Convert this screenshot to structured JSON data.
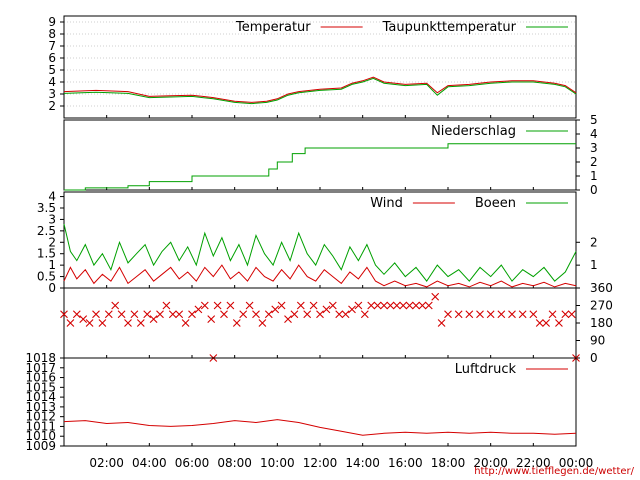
{
  "credit": "http://www.tiefflegen.de/wetter/",
  "x_ticks": [
    "02:00",
    "04:00",
    "06:00",
    "08:00",
    "10:00",
    "12:00",
    "14:00",
    "16:00",
    "18:00",
    "20:00",
    "22:00",
    "00:00"
  ],
  "colors": {
    "red": "#d40000",
    "green": "#00a000",
    "grid": "#a0a0a0",
    "frame": "#000000"
  },
  "chart_data": [
    {
      "type": "line",
      "x_unit": "hours",
      "xlim": [
        0,
        24
      ],
      "ylim": [
        1,
        9.5
      ],
      "y_ticks": [
        2,
        3,
        4,
        5,
        6,
        7,
        8,
        9
      ],
      "grid": true,
      "legend": "top-right",
      "series": [
        {
          "name": "Temperatur",
          "color": "#d40000",
          "x": [
            0,
            1.5,
            3,
            4,
            5,
            6,
            6.5,
            7,
            8,
            8.8,
            9.5,
            10,
            10.5,
            11,
            12,
            13,
            13.5,
            14,
            14.5,
            15,
            16,
            17,
            17.5,
            18,
            19,
            20,
            21,
            22,
            23,
            23.5,
            24
          ],
          "values": [
            3.2,
            3.3,
            3.2,
            2.8,
            2.85,
            2.9,
            2.8,
            2.7,
            2.4,
            2.3,
            2.4,
            2.6,
            3.0,
            3.2,
            3.4,
            3.5,
            3.9,
            4.1,
            4.4,
            4.0,
            3.8,
            3.9,
            3.1,
            3.7,
            3.8,
            4.0,
            4.1,
            4.1,
            3.9,
            3.7,
            3.1
          ]
        },
        {
          "name": "Taupunkttemperatur",
          "color": "#00a000",
          "x": [
            0,
            1.5,
            3,
            4,
            5,
            6,
            6.5,
            7,
            8,
            8.8,
            9.5,
            10,
            10.5,
            11,
            12,
            13,
            13.5,
            14,
            14.5,
            15,
            16,
            17,
            17.5,
            18,
            19,
            20,
            21,
            22,
            23,
            23.5,
            24
          ],
          "values": [
            3.05,
            3.15,
            3.05,
            2.7,
            2.75,
            2.8,
            2.7,
            2.6,
            2.3,
            2.2,
            2.3,
            2.5,
            2.9,
            3.1,
            3.3,
            3.4,
            3.8,
            4.0,
            4.3,
            3.9,
            3.7,
            3.8,
            2.9,
            3.6,
            3.7,
            3.9,
            4.0,
            4.0,
            3.8,
            3.6,
            3.0
          ]
        }
      ]
    },
    {
      "type": "line",
      "x_unit": "hours",
      "xlim": [
        0,
        24
      ],
      "ylim": [
        0,
        5
      ],
      "y_ticks": [
        0,
        1,
        2,
        3,
        4,
        5
      ],
      "y_axis": "right",
      "legend": "top-right",
      "series": [
        {
          "name": "Niederschlag",
          "color": "#00a000",
          "step": true,
          "x": [
            0,
            1,
            3,
            4,
            6,
            9.6,
            10,
            10.7,
            11.3,
            18,
            24
          ],
          "values": [
            0,
            0.15,
            0.3,
            0.6,
            1.0,
            1.5,
            2.0,
            2.6,
            3.0,
            3.3,
            3.3
          ]
        }
      ]
    },
    {
      "type": "line",
      "x_unit": "hours",
      "xlim": [
        0,
        24
      ],
      "ylim": [
        0,
        4.2
      ],
      "y_ticks": [
        0,
        0.5,
        1,
        1.5,
        2,
        2.5,
        3,
        3.5,
        4
      ],
      "right_ticks": [
        1,
        2
      ],
      "legend": "top-right",
      "series": [
        {
          "name": "Wind",
          "color": "#d40000",
          "x": [
            0,
            0.3,
            0.6,
            1,
            1.4,
            1.8,
            2.2,
            2.6,
            3,
            3.4,
            3.8,
            4.2,
            4.6,
            5,
            5.4,
            5.8,
            6.2,
            6.6,
            7,
            7.4,
            7.8,
            8.2,
            8.6,
            9,
            9.4,
            9.8,
            10.2,
            10.6,
            11,
            11.4,
            11.8,
            12.2,
            12.6,
            13,
            13.4,
            13.8,
            14.2,
            14.6,
            15,
            15.5,
            16,
            16.5,
            17,
            17.5,
            18,
            18.5,
            19,
            19.5,
            20,
            20.5,
            21,
            21.5,
            22,
            22.5,
            23,
            23.5,
            24
          ],
          "values": [
            0.3,
            0.9,
            0.4,
            0.8,
            0.2,
            0.6,
            0.3,
            0.9,
            0.2,
            0.5,
            0.8,
            0.3,
            0.6,
            0.9,
            0.4,
            0.7,
            0.3,
            0.9,
            0.5,
            1.0,
            0.4,
            0.7,
            0.3,
            0.9,
            0.5,
            0.3,
            0.8,
            0.4,
            1.0,
            0.5,
            0.3,
            0.8,
            0.5,
            0.2,
            0.7,
            0.4,
            0.9,
            0.3,
            0.1,
            0.3,
            0.1,
            0.2,
            0.05,
            0.3,
            0.1,
            0.2,
            0.05,
            0.25,
            0.1,
            0.3,
            0.05,
            0.2,
            0.1,
            0.25,
            0.05,
            0.2,
            0.1
          ]
        },
        {
          "name": "Boeen",
          "color": "#00a000",
          "x": [
            0,
            0.3,
            0.6,
            1,
            1.4,
            1.8,
            2.2,
            2.6,
            3,
            3.4,
            3.8,
            4.2,
            4.6,
            5,
            5.4,
            5.8,
            6.2,
            6.6,
            7,
            7.4,
            7.8,
            8.2,
            8.6,
            9,
            9.4,
            9.8,
            10.2,
            10.6,
            11,
            11.4,
            11.8,
            12.2,
            12.6,
            13,
            13.4,
            13.8,
            14.2,
            14.6,
            15,
            15.5,
            16,
            16.5,
            17,
            17.5,
            18,
            18.5,
            19,
            19.5,
            20,
            20.5,
            21,
            21.5,
            22,
            22.5,
            23,
            23.5,
            24
          ],
          "values": [
            2.8,
            1.6,
            1.2,
            1.9,
            1.0,
            1.5,
            0.8,
            2.0,
            1.1,
            1.5,
            1.9,
            1.0,
            1.6,
            2.0,
            1.2,
            1.8,
            1.0,
            2.4,
            1.4,
            2.2,
            1.2,
            1.9,
            1.0,
            2.3,
            1.5,
            1.0,
            2.0,
            1.2,
            2.4,
            1.5,
            1.0,
            1.9,
            1.4,
            0.8,
            1.8,
            1.2,
            1.9,
            1.0,
            0.6,
            1.1,
            0.5,
            0.9,
            0.3,
            1.0,
            0.5,
            0.8,
            0.3,
            0.9,
            0.5,
            1.0,
            0.3,
            0.8,
            0.5,
            0.9,
            0.3,
            0.7,
            1.6
          ]
        }
      ]
    },
    {
      "type": "scatter",
      "x_unit": "hours",
      "xlim": [
        0,
        24
      ],
      "ylim": [
        0,
        360
      ],
      "y_ticks": [
        0,
        90,
        180,
        270,
        360
      ],
      "y_axis": "right",
      "series": [
        {
          "color": "#d40000",
          "marker": "x",
          "x": [
            0,
            0.3,
            0.6,
            0.9,
            1.2,
            1.5,
            1.8,
            2.1,
            2.4,
            2.7,
            3.0,
            3.3,
            3.6,
            3.9,
            4.2,
            4.5,
            4.8,
            5.1,
            5.4,
            5.7,
            6.0,
            6.3,
            6.6,
            6.9,
            7.0,
            7.2,
            7.5,
            7.8,
            8.1,
            8.4,
            8.7,
            9.0,
            9.3,
            9.6,
            9.9,
            10.2,
            10.5,
            10.8,
            11.1,
            11.4,
            11.7,
            12.0,
            12.3,
            12.6,
            12.9,
            13.2,
            13.5,
            13.8,
            14.1,
            14.4,
            14.7,
            15.0,
            15.3,
            15.6,
            15.9,
            16.2,
            16.5,
            16.8,
            17.1,
            17.4,
            17.7,
            18.0,
            18.5,
            19.0,
            19.5,
            20.0,
            20.5,
            21.0,
            21.5,
            22.0,
            22.3,
            22.6,
            22.9,
            23.2,
            23.5,
            23.8,
            24.0
          ],
          "values": [
            225,
            180,
            225,
            200,
            180,
            225,
            180,
            225,
            270,
            225,
            180,
            225,
            180,
            225,
            200,
            225,
            270,
            225,
            225,
            180,
            225,
            250,
            270,
            200,
            0,
            270,
            225,
            270,
            180,
            225,
            270,
            225,
            180,
            225,
            250,
            270,
            200,
            225,
            270,
            225,
            270,
            225,
            250,
            270,
            225,
            225,
            250,
            270,
            225,
            270,
            270,
            270,
            270,
            270,
            270,
            270,
            270,
            270,
            270,
            315,
            180,
            225,
            225,
            225,
            225,
            225,
            225,
            225,
            225,
            225,
            180,
            180,
            225,
            180,
            225,
            225,
            0
          ]
        }
      ]
    },
    {
      "type": "line",
      "x_unit": "hours",
      "xlim": [
        0,
        24
      ],
      "ylim": [
        1009,
        1018
      ],
      "y_ticks": [
        1009,
        1010,
        1011,
        1012,
        1013,
        1014,
        1015,
        1016,
        1017,
        1018
      ],
      "legend": "top-right",
      "series": [
        {
          "name": "Luftdruck",
          "color": "#d40000",
          "x": [
            0,
            1,
            2,
            3,
            4,
            5,
            6,
            7,
            8,
            9,
            10,
            11,
            12,
            13,
            14,
            15,
            16,
            17,
            18,
            19,
            20,
            21,
            22,
            23,
            24
          ],
          "values": [
            1011.5,
            1011.6,
            1011.3,
            1011.4,
            1011.1,
            1011.0,
            1011.1,
            1011.3,
            1011.6,
            1011.4,
            1011.7,
            1011.4,
            1010.9,
            1010.5,
            1010.1,
            1010.3,
            1010.4,
            1010.3,
            1010.4,
            1010.3,
            1010.4,
            1010.3,
            1010.3,
            1010.2,
            1010.3
          ]
        }
      ]
    }
  ]
}
